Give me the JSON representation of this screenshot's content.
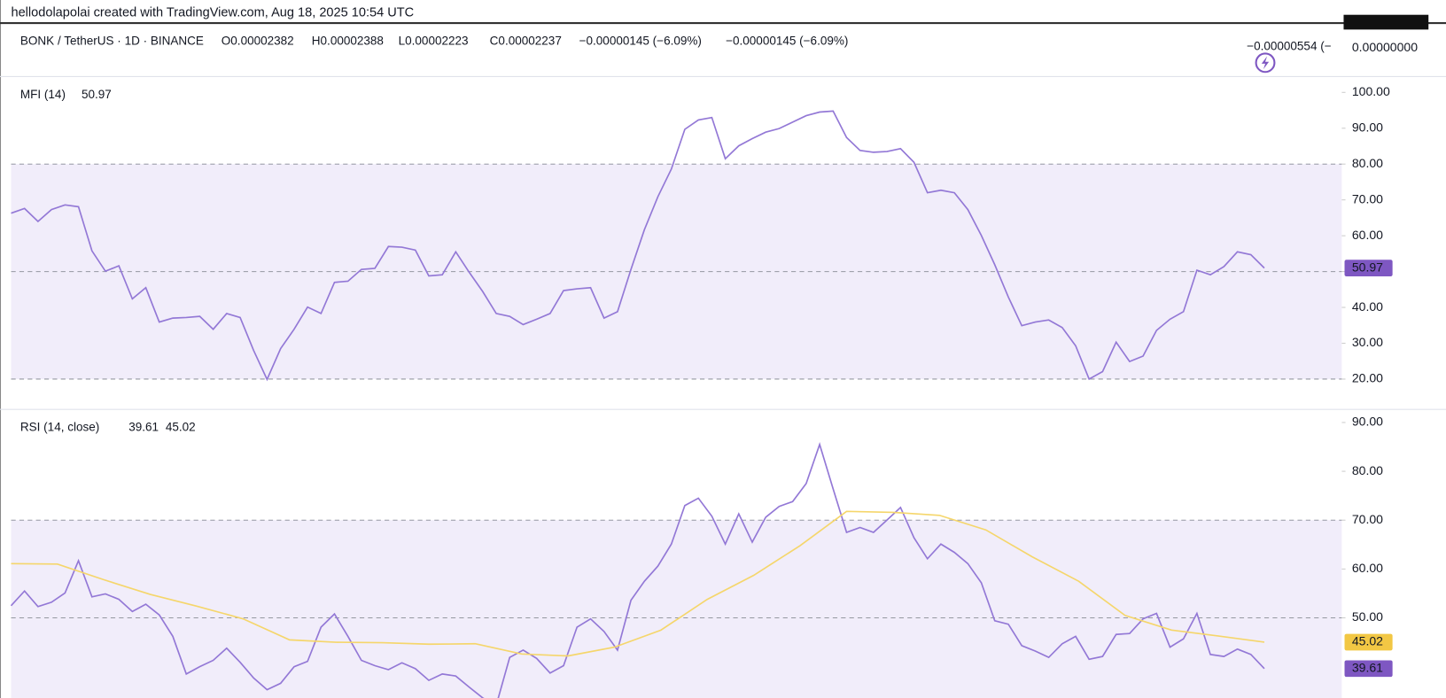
{
  "header": {
    "attribution": "hellodolapolai created with TradingView.com, Aug 18, 2025 10:54 UTC",
    "symbol": "BONK / TetherUS · 1D · BINANCE",
    "open": "O0.00002382",
    "high": "H0.00002388",
    "low": "L0.00002223",
    "close": "C0.00002237",
    "change": "−0.00000145 (−6.09%)",
    "change_repeat": "−0.00000145 (−6.09%)",
    "price_change": "−0.00000554 (−",
    "price_axis": "0.00000000"
  },
  "chart_data": [
    {
      "type": "line",
      "title": "MFI (14)",
      "ylim": [
        11.8,
        103.9
      ],
      "yticks": [
        {
          "value": 20,
          "label": "20.00"
        },
        {
          "value": 30,
          "label": "30.00"
        },
        {
          "value": 40,
          "label": "40.00"
        },
        {
          "value": 50,
          "label": "50.00"
        },
        {
          "value": 60,
          "label": "60.00"
        },
        {
          "value": 70,
          "label": "70.00"
        },
        {
          "value": 80,
          "label": "80.00"
        },
        {
          "value": 90,
          "label": "90.00"
        },
        {
          "value": 100,
          "label": "100.00"
        }
      ],
      "levels": [
        20,
        50,
        80
      ],
      "band": [
        20,
        80
      ],
      "band_color": "#f1edfa",
      "series": [
        {
          "name": "MFI",
          "color": "#9378d6",
          "label_color": "#7e57c2",
          "values": [
            66.3,
            67.6,
            64.0,
            67.3,
            68.6,
            68.1,
            55.8,
            50.1,
            51.6,
            42.4,
            45.5,
            35.9,
            37.0,
            37.2,
            37.5,
            33.9,
            38.3,
            37.2,
            28.0,
            19.9,
            28.5,
            33.9,
            40.1,
            38.3,
            47.0,
            47.3,
            50.6,
            50.9,
            57.0,
            56.8,
            56.0,
            48.8,
            49.1,
            55.5,
            49.8,
            44.4,
            38.3,
            37.5,
            35.2,
            36.7,
            38.3,
            44.7,
            45.2,
            45.5,
            37.0,
            38.8,
            50.6,
            61.7,
            70.9,
            78.6,
            89.7,
            92.3,
            93.0,
            81.5,
            85.1,
            87.1,
            88.9,
            89.9,
            91.7,
            93.5,
            94.5,
            94.8,
            87.4,
            83.8,
            83.3,
            83.5,
            84.3,
            80.5,
            72.0,
            72.7,
            72.0,
            67.3,
            60.1,
            51.9,
            42.9,
            34.9,
            35.9,
            36.5,
            34.4,
            29.3,
            20.0,
            22.1,
            30.3,
            24.9,
            26.4,
            33.6,
            36.7,
            38.8,
            50.4,
            49.1,
            51.4,
            55.5,
            54.7,
            50.97
          ]
        }
      ]
    },
    {
      "type": "line",
      "title": "RSI (14, close)",
      "ylim": [
        33.6,
        92.3
      ],
      "yticks": [
        {
          "value": 50,
          "label": "50.00"
        },
        {
          "value": 60,
          "label": "60.00"
        },
        {
          "value": 70,
          "label": "70.00"
        },
        {
          "value": 80,
          "label": "80.00"
        },
        {
          "value": 90,
          "label": "90.00"
        }
      ],
      "levels": [
        30,
        50,
        70
      ],
      "band": [
        30,
        70
      ],
      "band_color": "#f1edfa",
      "series": [
        {
          "name": "RSI",
          "color": "#9378d6",
          "label_color": "#7e57c2",
          "values": [
            52.5,
            55.5,
            52.3,
            53.2,
            55.1,
            61.7,
            54.3,
            54.9,
            53.8,
            51.3,
            52.8,
            50.6,
            46.2,
            38.5,
            40.0,
            41.3,
            43.8,
            40.9,
            37.7,
            35.3,
            36.6,
            40.0,
            41.1,
            48.1,
            50.8,
            46.2,
            41.3,
            40.2,
            39.4,
            40.8,
            39.6,
            37.2,
            38.5,
            38.1,
            35.8,
            33.6,
            32.1,
            41.9,
            43.4,
            41.7,
            38.7,
            40.2,
            48.1,
            49.8,
            47.2,
            43.4,
            53.6,
            57.5,
            60.6,
            65.1,
            73.0,
            74.5,
            70.8,
            65.1,
            71.3,
            65.5,
            70.6,
            72.8,
            73.8,
            77.5,
            85.5,
            76.4,
            67.5,
            68.5,
            67.5,
            70.0,
            72.6,
            66.4,
            62.1,
            65.1,
            63.4,
            61.1,
            57.2,
            49.4,
            48.7,
            44.3,
            43.2,
            41.9,
            44.7,
            46.2,
            41.5,
            42.1,
            46.6,
            46.8,
            49.8,
            50.9,
            44.0,
            45.7,
            50.9,
            42.5,
            42.1,
            43.6,
            42.5,
            39.61
          ]
        },
        {
          "name": "RSI-based MA",
          "color": "#f5d66b",
          "label_color": "#f2c744",
          "values": [
            61.1,
            61.0,
            57.8,
            54.8,
            52.4,
            49.8,
            45.5,
            45.0,
            44.9,
            44.6,
            44.7,
            42.6,
            42.2,
            44.0,
            47.5,
            53.8,
            58.7,
            64.8,
            71.8,
            71.6,
            71.0,
            68.0,
            62.5,
            57.5,
            50.5,
            47.5,
            46.3,
            45.02
          ]
        }
      ]
    }
  ]
}
